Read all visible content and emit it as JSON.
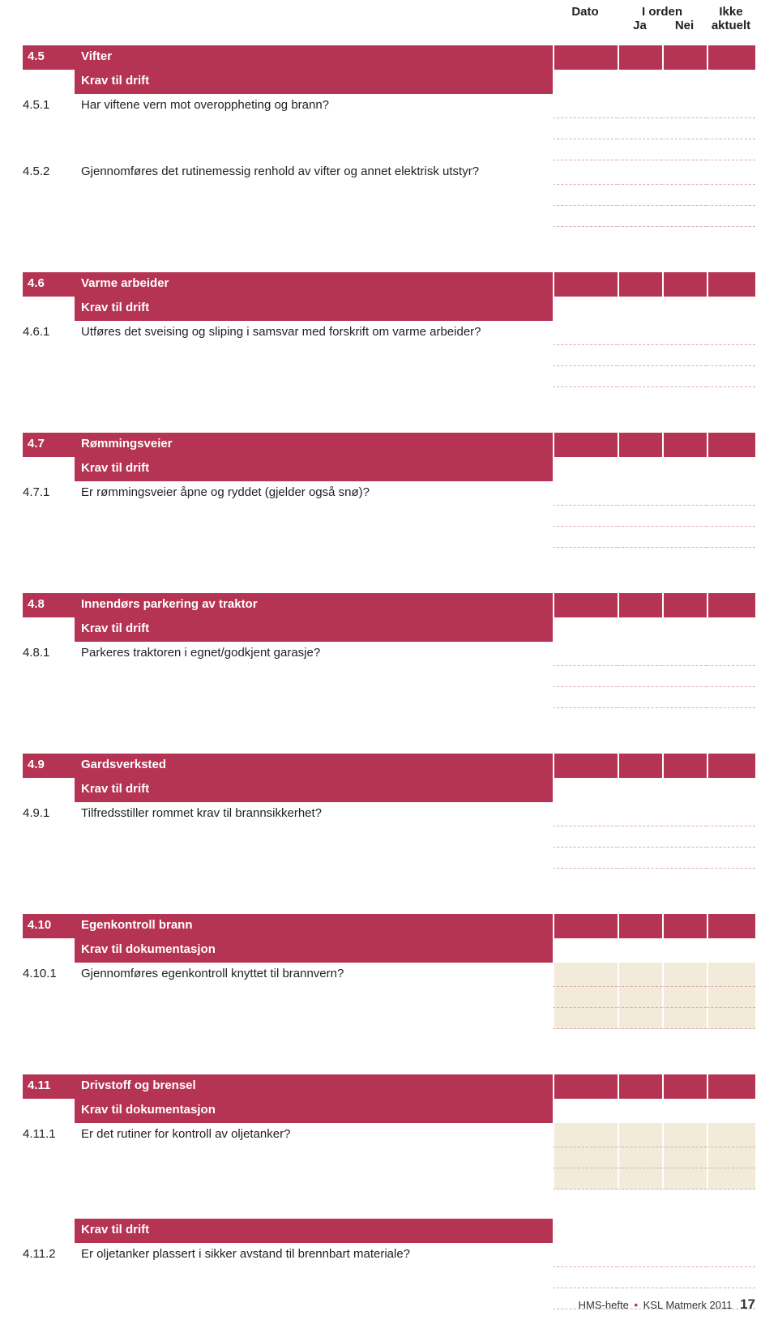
{
  "headers": {
    "dato": "Dato",
    "iorden": "I orden",
    "ja": "Ja",
    "nei": "Nei",
    "ikke": "Ikke",
    "aktuelt": "aktuelt"
  },
  "colors": {
    "accent": "#b53353",
    "doc_bg": "#f2ebd9",
    "dash": "#d9a9b6"
  },
  "sections": [
    {
      "num": "4.5",
      "title": "Vifter",
      "sub": "Krav til drift",
      "items": [
        {
          "num": "4.5.1",
          "text": "Har viftene vern mot overoppheting og brann?"
        },
        {
          "num": "4.5.2",
          "text": "Gjennomføres det rutinemessig renhold av vifter og annet elektrisk utstyr?"
        }
      ]
    },
    {
      "num": "4.6",
      "title": "Varme arbeider",
      "sub": "Krav til drift",
      "items": [
        {
          "num": "4.6.1",
          "text": "Utføres det sveising og sliping i samsvar med forskrift om varme arbeider?"
        }
      ]
    },
    {
      "num": "4.7",
      "title": "Rømmingsveier",
      "sub": "Krav til drift",
      "items": [
        {
          "num": "4.7.1",
          "text": "Er rømmingsveier åpne og ryddet (gjelder også snø)?"
        }
      ]
    },
    {
      "num": "4.8",
      "title": "Innendørs parkering av traktor",
      "sub": "Krav til drift",
      "items": [
        {
          "num": "4.8.1",
          "text": "Parkeres traktoren i egnet/godkjent garasje?"
        }
      ]
    },
    {
      "num": "4.9",
      "title": "Gardsverksted",
      "sub": "Krav til drift",
      "items": [
        {
          "num": "4.9.1",
          "text": "Tilfredsstiller rommet krav til brannsikkerhet?"
        }
      ]
    },
    {
      "num": "4.10",
      "title": "Egenkontroll brann",
      "sub": "Krav til dokumentasjon",
      "doc": true,
      "items": [
        {
          "num": "4.10.1",
          "text": "Gjennomføres egenkontroll knyttet til brannvern?"
        }
      ]
    },
    {
      "num": "4.11",
      "title": "Drivstoff og brensel",
      "sub": "Krav til dokumentasjon",
      "doc": true,
      "items": [
        {
          "num": "4.11.1",
          "text": "Er det rutiner for kontroll av oljetanker?"
        }
      ],
      "extra": {
        "sub": "Krav til drift",
        "items": [
          {
            "num": "4.11.2",
            "text": "Er oljetanker plassert i sikker avstand til brennbart materiale?"
          }
        ]
      }
    }
  ],
  "footer": {
    "left": "HMS-hefte",
    "right": "KSL Matmerk 2011",
    "page": "17"
  }
}
